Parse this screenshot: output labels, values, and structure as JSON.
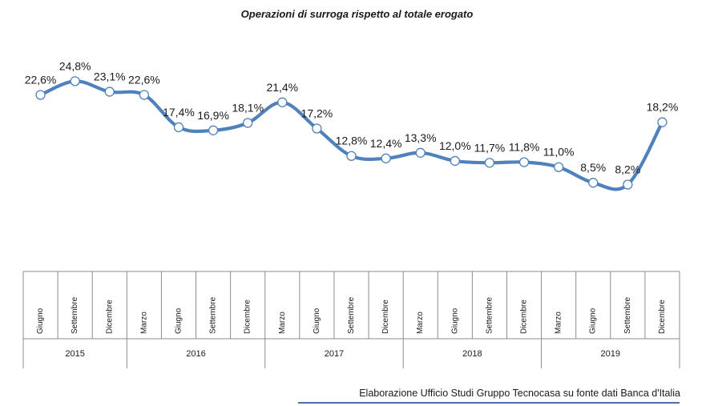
{
  "chart_data": {
    "type": "line",
    "title": "Operazioni di surroga rispetto al totale erogato",
    "xlabel": "",
    "ylabel": "",
    "ylim": [
      0,
      30
    ],
    "grid": false,
    "categories": [
      "Giugno",
      "Settembre",
      "Dicembre",
      "Marzo",
      "Giugno",
      "Settembre",
      "Dicembre",
      "Marzo",
      "Giugno",
      "Settembre",
      "Dicembre",
      "Marzo",
      "Giugno",
      "Settembre",
      "Dicembre",
      "Marzo",
      "Giugno",
      "Settembre",
      "Dicembre"
    ],
    "years": [
      {
        "label": "2015",
        "span": 3
      },
      {
        "label": "2016",
        "span": 4
      },
      {
        "label": "2017",
        "span": 4
      },
      {
        "label": "2018",
        "span": 4
      },
      {
        "label": "2019",
        "span": 4
      }
    ],
    "values": [
      22.6,
      24.8,
      23.1,
      22.6,
      17.4,
      16.9,
      18.1,
      21.4,
      17.2,
      12.8,
      12.4,
      13.3,
      12.0,
      11.7,
      11.8,
      11.0,
      8.5,
      8.2,
      18.2
    ],
    "data_labels": [
      "22,6%",
      "24,8%",
      "23,1%",
      "22,6%",
      "17,4%",
      "16,9%",
      "18,1%",
      "21,4%",
      "17,2%",
      "12,8%",
      "12,4%",
      "13,3%",
      "12,0%",
      "11,7%",
      "11,8%",
      "11,0%",
      "8,5%",
      "8,2%",
      "18,2%"
    ],
    "line_color": "#4f81bd",
    "marker_fill": "#ffffff"
  },
  "source": "Elaborazione Ufficio Studi Gruppo Tecnocasa su fonte dati Banca d'Italia"
}
